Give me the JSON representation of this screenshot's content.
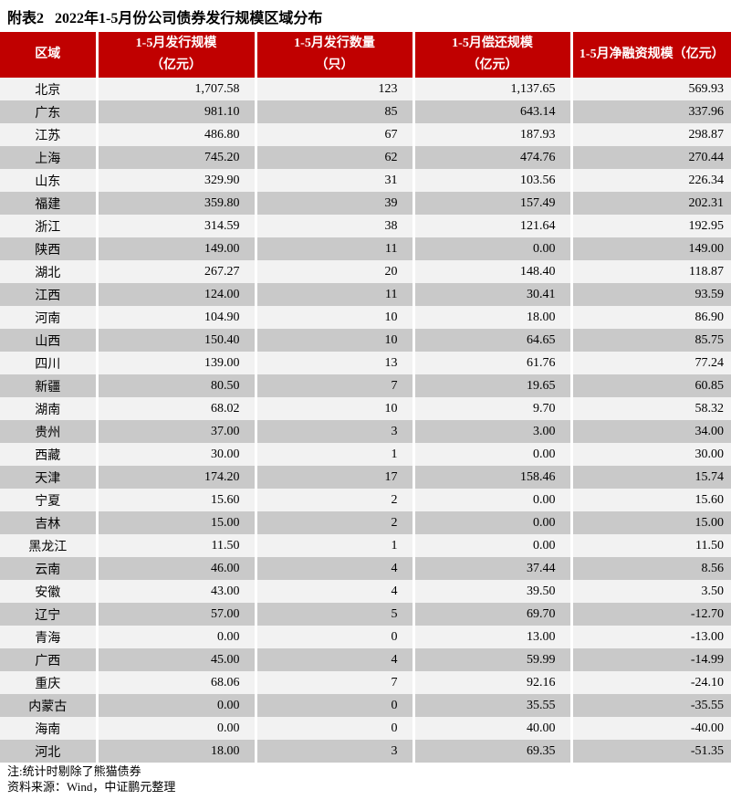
{
  "title": "附表2   2022年1-5月份公司债券发行规模区域分布",
  "headers": [
    {
      "line1": "区域",
      "line2": ""
    },
    {
      "line1": "1-5月发行规模",
      "line2": "（亿元）"
    },
    {
      "line1": "1-5月发行数量",
      "line2": "（只）"
    },
    {
      "line1": "1-5月偿还规模",
      "line2": "（亿元）"
    },
    {
      "line1": "1-5月净融资规模（亿元）",
      "line2": ""
    }
  ],
  "rows": [
    [
      "北京",
      "1,707.58",
      "123",
      "1,137.65",
      "569.93"
    ],
    [
      "广东",
      "981.10",
      "85",
      "643.14",
      "337.96"
    ],
    [
      "江苏",
      "486.80",
      "67",
      "187.93",
      "298.87"
    ],
    [
      "上海",
      "745.20",
      "62",
      "474.76",
      "270.44"
    ],
    [
      "山东",
      "329.90",
      "31",
      "103.56",
      "226.34"
    ],
    [
      "福建",
      "359.80",
      "39",
      "157.49",
      "202.31"
    ],
    [
      "浙江",
      "314.59",
      "38",
      "121.64",
      "192.95"
    ],
    [
      "陕西",
      "149.00",
      "11",
      "0.00",
      "149.00"
    ],
    [
      "湖北",
      "267.27",
      "20",
      "148.40",
      "118.87"
    ],
    [
      "江西",
      "124.00",
      "11",
      "30.41",
      "93.59"
    ],
    [
      "河南",
      "104.90",
      "10",
      "18.00",
      "86.90"
    ],
    [
      "山西",
      "150.40",
      "10",
      "64.65",
      "85.75"
    ],
    [
      "四川",
      "139.00",
      "13",
      "61.76",
      "77.24"
    ],
    [
      "新疆",
      "80.50",
      "7",
      "19.65",
      "60.85"
    ],
    [
      "湖南",
      "68.02",
      "10",
      "9.70",
      "58.32"
    ],
    [
      "贵州",
      "37.00",
      "3",
      "3.00",
      "34.00"
    ],
    [
      "西藏",
      "30.00",
      "1",
      "0.00",
      "30.00"
    ],
    [
      "天津",
      "174.20",
      "17",
      "158.46",
      "15.74"
    ],
    [
      "宁夏",
      "15.60",
      "2",
      "0.00",
      "15.60"
    ],
    [
      "吉林",
      "15.00",
      "2",
      "0.00",
      "15.00"
    ],
    [
      "黑龙江",
      "11.50",
      "1",
      "0.00",
      "11.50"
    ],
    [
      "云南",
      "46.00",
      "4",
      "37.44",
      "8.56"
    ],
    [
      "安徽",
      "43.00",
      "4",
      "39.50",
      "3.50"
    ],
    [
      "辽宁",
      "57.00",
      "5",
      "69.70",
      "-12.70"
    ],
    [
      "青海",
      "0.00",
      "0",
      "13.00",
      "-13.00"
    ],
    [
      "广西",
      "45.00",
      "4",
      "59.99",
      "-14.99"
    ],
    [
      "重庆",
      "68.06",
      "7",
      "92.16",
      "-24.10"
    ],
    [
      "内蒙古",
      "0.00",
      "0",
      "35.55",
      "-35.55"
    ],
    [
      "海南",
      "0.00",
      "0",
      "40.00",
      "-40.00"
    ],
    [
      "河北",
      "18.00",
      "3",
      "69.35",
      "-51.35"
    ]
  ],
  "notes": {
    "note": "注:统计时剔除了熊猫债券",
    "source": "资料来源：Wind，中证鹏元整理"
  },
  "colors": {
    "header_bg": "#c00000",
    "row_light": "#f2f2f2",
    "row_dark": "#c9c9c9"
  }
}
